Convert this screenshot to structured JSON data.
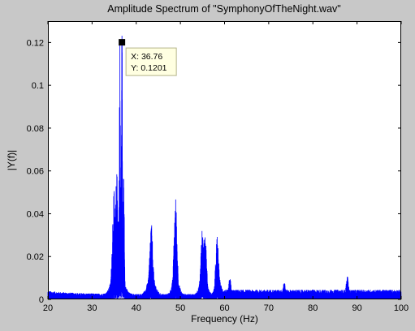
{
  "chart_data": {
    "type": "line",
    "title": "Amplitude Spectrum of \"SymphonyOfTheNight.wav\"",
    "xlabel": "Frequency (Hz)",
    "ylabel": "|Y(f)|",
    "xlim": [
      20,
      100
    ],
    "ylim": [
      0,
      0.13
    ],
    "xticks": [
      "20",
      "30",
      "40",
      "50",
      "60",
      "70",
      "80",
      "90",
      "100"
    ],
    "yticks": [
      "0",
      "0.02",
      "0.04",
      "0.06",
      "0.08",
      "0.1",
      "0.12"
    ],
    "grid": false,
    "series_color": "#0000ff",
    "peaks": [
      {
        "x": 36.76,
        "y": 0.1201
      },
      {
        "x": 36.3,
        "y": 0.105
      },
      {
        "x": 37.2,
        "y": 0.052
      },
      {
        "x": 35.6,
        "y": 0.038
      },
      {
        "x": 34.9,
        "y": 0.036
      },
      {
        "x": 43.4,
        "y": 0.026
      },
      {
        "x": 48.9,
        "y": 0.037
      },
      {
        "x": 54.9,
        "y": 0.026
      },
      {
        "x": 55.6,
        "y": 0.024
      },
      {
        "x": 58.3,
        "y": 0.021
      },
      {
        "x": 61.2,
        "y": 0.01
      },
      {
        "x": 73.5,
        "y": 0.009
      },
      {
        "x": 87.8,
        "y": 0.011
      }
    ],
    "datatip": {
      "x": 36.76,
      "y": 0.1201,
      "x_text": "X: 36.76",
      "y_text": "Y: 0.1201"
    }
  }
}
